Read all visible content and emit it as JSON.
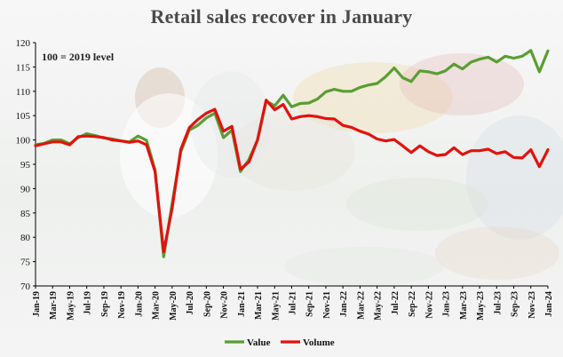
{
  "chart_data": {
    "type": "line",
    "title": "Retail sales recover in January",
    "annotation": "100 = 2019 level",
    "ylim": [
      70,
      120
    ],
    "yticks": [
      70,
      75,
      80,
      85,
      90,
      95,
      100,
      105,
      110,
      115,
      120
    ],
    "grid": false,
    "legend_position": "bottom-center",
    "x": [
      "Jan-19",
      "Feb-19",
      "Mar-19",
      "Apr-19",
      "May-19",
      "Jun-19",
      "Jul-19",
      "Aug-19",
      "Sep-19",
      "Oct-19",
      "Nov-19",
      "Dec-19",
      "Jan-20",
      "Feb-20",
      "Mar-20",
      "Apr-20",
      "May-20",
      "Jun-20",
      "Jul-20",
      "Aug-20",
      "Sep-20",
      "Oct-20",
      "Nov-20",
      "Dec-20",
      "Jan-21",
      "Feb-21",
      "Mar-21",
      "Apr-21",
      "May-21",
      "Jun-21",
      "Jul-21",
      "Aug-21",
      "Sep-21",
      "Oct-21",
      "Nov-21",
      "Dec-21",
      "Jan-22",
      "Feb-22",
      "Mar-22",
      "Apr-22",
      "May-22",
      "Jun-22",
      "Jul-22",
      "Aug-22",
      "Sep-22",
      "Oct-22",
      "Nov-22",
      "Dec-22",
      "Jan-23",
      "Feb-23",
      "Mar-23",
      "Apr-23",
      "May-23",
      "Jun-23",
      "Jul-23",
      "Aug-23",
      "Sep-23",
      "Oct-23",
      "Nov-23",
      "Dec-23",
      "Jan-24"
    ],
    "xtick_labels": [
      "Jan-19",
      "Mar-19",
      "May-19",
      "Jul-19",
      "Sep-19",
      "Nov-19",
      "Jan-20",
      "Mar-20",
      "May-20",
      "Jul-20",
      "Sep-20",
      "Nov-20",
      "Jan-21",
      "Mar-21",
      "May-21",
      "Jul-21",
      "Sep-21",
      "Nov-21",
      "Jan-22",
      "Mar-22",
      "May-22",
      "Jul-22",
      "Sep-22",
      "Nov-22",
      "Jan-23",
      "Mar-23",
      "May-23",
      "Jul-23",
      "Sep-23",
      "Nov-23",
      "Jan-24"
    ],
    "series": [
      {
        "name": "Value",
        "color": "#5a9e32",
        "values": [
          99.0,
          99.3,
          100.0,
          100.0,
          99.2,
          100.5,
          101.3,
          100.9,
          100.4,
          100.2,
          99.8,
          99.6,
          100.8,
          99.9,
          93.8,
          76.0,
          87.0,
          97.5,
          102.0,
          103.0,
          104.5,
          105.5,
          100.5,
          102.0,
          93.5,
          96.0,
          100.0,
          108.0,
          107.0,
          109.2,
          106.8,
          107.5,
          107.6,
          108.4,
          109.9,
          110.4,
          110.0,
          110.0,
          110.8,
          111.3,
          111.6,
          113.0,
          114.8,
          112.8,
          112.0,
          114.2,
          114.0,
          113.6,
          114.2,
          115.6,
          114.6,
          116.0,
          116.6,
          117.0,
          116.0,
          117.2,
          116.8,
          117.2,
          118.4,
          114.0,
          118.3
        ]
      },
      {
        "name": "Volume",
        "color": "#e2120d",
        "values": [
          98.8,
          99.2,
          99.6,
          99.6,
          99.0,
          100.7,
          100.8,
          100.7,
          100.5,
          100.0,
          99.8,
          99.5,
          99.8,
          99.0,
          93.5,
          77.0,
          86.0,
          98.0,
          102.5,
          104.2,
          105.5,
          106.3,
          101.8,
          102.8,
          94.0,
          95.5,
          100.0,
          108.2,
          106.2,
          107.3,
          104.3,
          104.8,
          105.0,
          104.8,
          104.4,
          104.3,
          103.0,
          102.6,
          101.8,
          101.2,
          100.2,
          99.8,
          100.1,
          98.8,
          97.4,
          98.8,
          97.6,
          96.8,
          97.0,
          98.4,
          97.0,
          97.8,
          97.8,
          98.1,
          97.2,
          97.6,
          96.4,
          96.3,
          98.0,
          94.5,
          98.0
        ]
      }
    ]
  }
}
